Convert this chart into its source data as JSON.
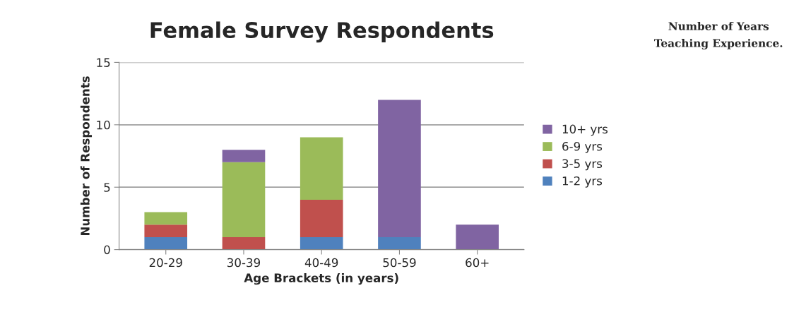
{
  "chart_data": {
    "type": "bar",
    "title": "Female Survey Respondents",
    "xlabel": "Age Brackets (in years)",
    "ylabel": "Number of Respondents",
    "legend_title": "Number of Years\nTeaching Experience.",
    "categories": [
      "20-29",
      "30-39",
      "40-49",
      "50-59",
      "60+"
    ],
    "stacked": true,
    "series": [
      {
        "name": "1-2 yrs",
        "color": "#4f81bd",
        "values": [
          1,
          0,
          1,
          1,
          0
        ]
      },
      {
        "name": "3-5 yrs",
        "color": "#c0504d",
        "values": [
          1,
          1,
          3,
          0,
          0
        ]
      },
      {
        "name": "6-9 yrs",
        "color": "#9bbb59",
        "values": [
          1,
          6,
          5,
          0,
          0
        ]
      },
      {
        "name": "10+ yrs",
        "color": "#8064a2",
        "values": [
          0,
          1,
          0,
          11,
          2
        ]
      }
    ],
    "ylim": [
      0,
      15
    ],
    "yticks": [
      0,
      5,
      10,
      15
    ],
    "grid": "y",
    "legend": "right"
  }
}
